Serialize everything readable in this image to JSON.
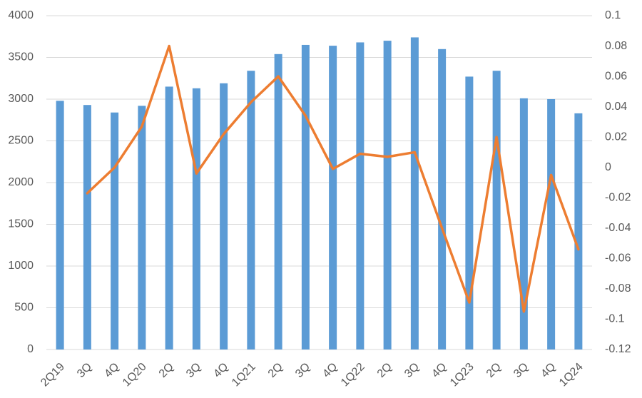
{
  "chart_data": {
    "type": "bar_line",
    "categories": [
      "2Q19",
      "3Q",
      "4Q",
      "1Q20",
      "2Q",
      "3Q",
      "4Q",
      "1Q21",
      "2Q",
      "3Q",
      "4Q",
      "1Q22",
      "2Q",
      "3Q",
      "4Q",
      "1Q23",
      "2Q",
      "3Q",
      "4Q",
      "1Q24"
    ],
    "series": [
      {
        "type": "bar",
        "color": "#5b9bd5",
        "values": [
          2980,
          2930,
          2840,
          2920,
          3150,
          3130,
          3190,
          3340,
          3540,
          3650,
          3640,
          3680,
          3700,
          3740,
          3600,
          3270,
          3340,
          3010,
          3000,
          2830
        ]
      },
      {
        "type": "line",
        "axis": "y2",
        "color": "#ed7d31",
        "values": [
          null,
          -0.017,
          0,
          0.027,
          0.08,
          -0.004,
          0.022,
          0.043,
          0.06,
          0.034,
          -0.001,
          0.009,
          0.007,
          0.01,
          -0.04,
          -0.089,
          0.02,
          -0.095,
          -0.005,
          -0.054
        ]
      }
    ],
    "ylim": [
      0,
      4000
    ],
    "yticks": [
      0,
      500,
      1000,
      1500,
      2000,
      2500,
      3000,
      3500,
      4000
    ],
    "y2lim": [
      -0.12,
      0.1
    ],
    "y2ticks": [
      -0.12,
      -0.1,
      -0.08,
      -0.06,
      -0.04,
      -0.02,
      0,
      0.02,
      0.04,
      0.06,
      0.08,
      0.1
    ],
    "grid": true
  }
}
